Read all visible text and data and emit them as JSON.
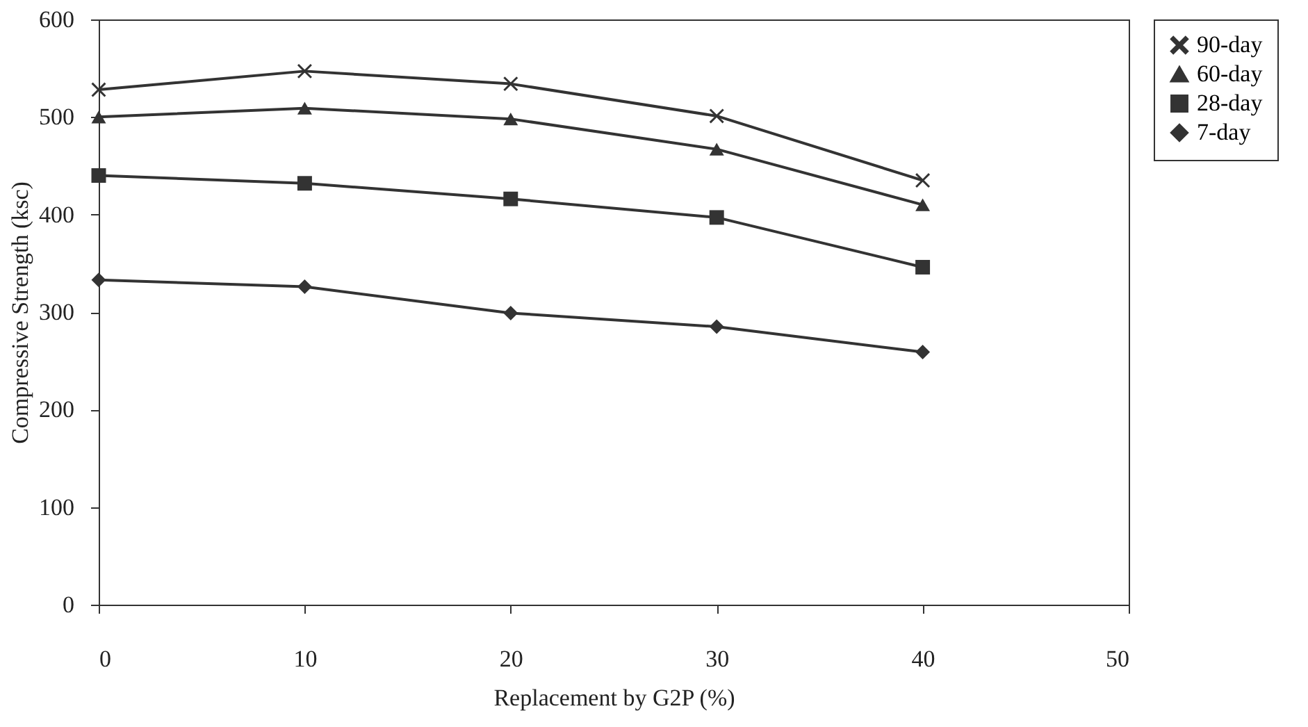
{
  "chart_data": {
    "type": "line",
    "xlabel": "Replacement by G2P (%)",
    "ylabel": "Compressive Strength (ksc)",
    "x": [
      0,
      10,
      20,
      30,
      40
    ],
    "xlim": [
      0,
      50
    ],
    "xticks": [
      0,
      10,
      20,
      30,
      40,
      50
    ],
    "ylim": [
      0,
      600
    ],
    "yticks": [
      0,
      100,
      200,
      300,
      400,
      500,
      600
    ],
    "legend": "right",
    "series": [
      {
        "name": "90-day",
        "color": "#333333",
        "marker": "cross",
        "values": [
          528,
          547,
          534,
          501,
          435
        ]
      },
      {
        "name": "60-day",
        "color": "#333333",
        "marker": "triangle",
        "values": [
          500,
          509,
          498,
          467,
          410
        ]
      },
      {
        "name": "28-day",
        "color": "#333333",
        "marker": "square",
        "values": [
          440,
          432,
          416,
          397,
          346
        ]
      },
      {
        "name": "7-day",
        "color": "#333333",
        "marker": "diamond",
        "values": [
          333,
          326,
          299,
          285,
          259
        ]
      }
    ]
  }
}
